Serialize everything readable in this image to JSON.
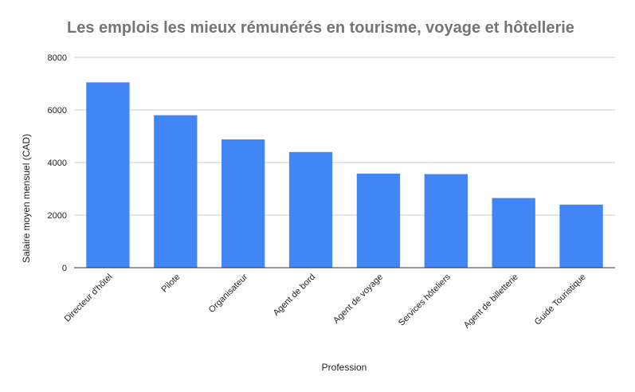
{
  "chart_data": {
    "type": "bar",
    "title": "Les emplois les mieux rémunérés en tourisme, voyage et hôtellerie",
    "xlabel": "Profession",
    "ylabel": "Salaire moyen mensuel (CAD)",
    "categories": [
      "Directeur d'hôtel",
      "Pilote",
      "Organisateur",
      "Agent de bord",
      "Agent de voyage",
      "Services hôteliers",
      "Agent de billetterie",
      "Guide Touristique"
    ],
    "values": [
      7050,
      5800,
      4880,
      4400,
      3580,
      3560,
      2650,
      2400
    ],
    "ylim": [
      0,
      8000
    ],
    "yticks": [
      0,
      2000,
      4000,
      6000,
      8000
    ],
    "grid": true,
    "legend": "none",
    "bar_color": "#4285f4"
  }
}
